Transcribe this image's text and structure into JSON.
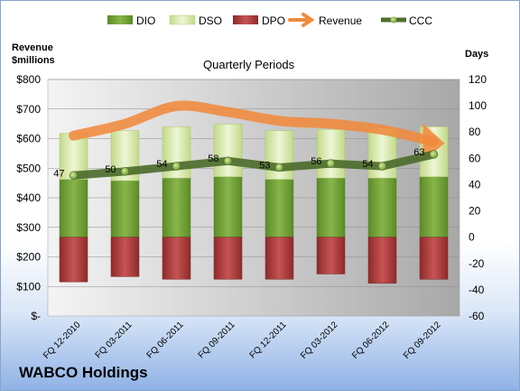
{
  "chart_data": {
    "type": "bar",
    "title": "Quarterly Periods",
    "company": "WABCO Holdings",
    "categories": [
      "FQ 12-2010",
      "FQ 03-2011",
      "FQ 06-2011",
      "FQ 09-2011",
      "FQ 12-2011",
      "FQ 03-2012",
      "FQ 06-2012",
      "FQ 09-2012"
    ],
    "left_axis": {
      "title_line1": "Revenue",
      "title_line2": "$millions",
      "ylim": [
        0,
        800
      ],
      "ticks": [
        0,
        100,
        200,
        300,
        400,
        500,
        600,
        700,
        800
      ],
      "tick_labels": [
        "$-",
        "$100",
        "$200",
        "$300",
        "$400",
        "$500",
        "$600",
        "$700",
        "$800"
      ]
    },
    "right_axis": {
      "title": "Days",
      "ylim": [
        -60,
        120
      ],
      "ticks": [
        -60,
        -40,
        -20,
        0,
        20,
        40,
        60,
        80,
        100,
        120
      ],
      "tick_labels": [
        "-60",
        "-40",
        "-20",
        "0",
        "20",
        "40",
        "60",
        "80",
        "100",
        "120"
      ]
    },
    "series": [
      {
        "name": "DIO",
        "axis": "right",
        "color": "#6e9a34",
        "values": [
          44,
          43,
          45,
          46,
          44,
          45,
          45,
          46
        ]
      },
      {
        "name": "DSO",
        "axis": "right",
        "color": "#d6e8ae",
        "values": [
          35,
          38,
          39,
          40,
          37,
          37,
          38,
          38
        ]
      },
      {
        "name": "DPO",
        "axis": "right",
        "color": "#b03a3a",
        "values": [
          -34,
          -30,
          -32,
          -32,
          -32,
          -28,
          -35,
          -32
        ]
      },
      {
        "name": "Revenue",
        "axis": "left",
        "color": "#f08a3c",
        "values": [
          610,
          650,
          710,
          690,
          660,
          650,
          630,
          590
        ]
      },
      {
        "name": "CCC",
        "axis": "right",
        "color": "#4e6e2e",
        "values": [
          47,
          50,
          54,
          58,
          53,
          56,
          54,
          63
        ]
      }
    ],
    "ccc_labels": [
      "47",
      "50",
      "54",
      "58",
      "53",
      "56",
      "54",
      "63"
    ],
    "grid": true,
    "legend_position": "top"
  }
}
